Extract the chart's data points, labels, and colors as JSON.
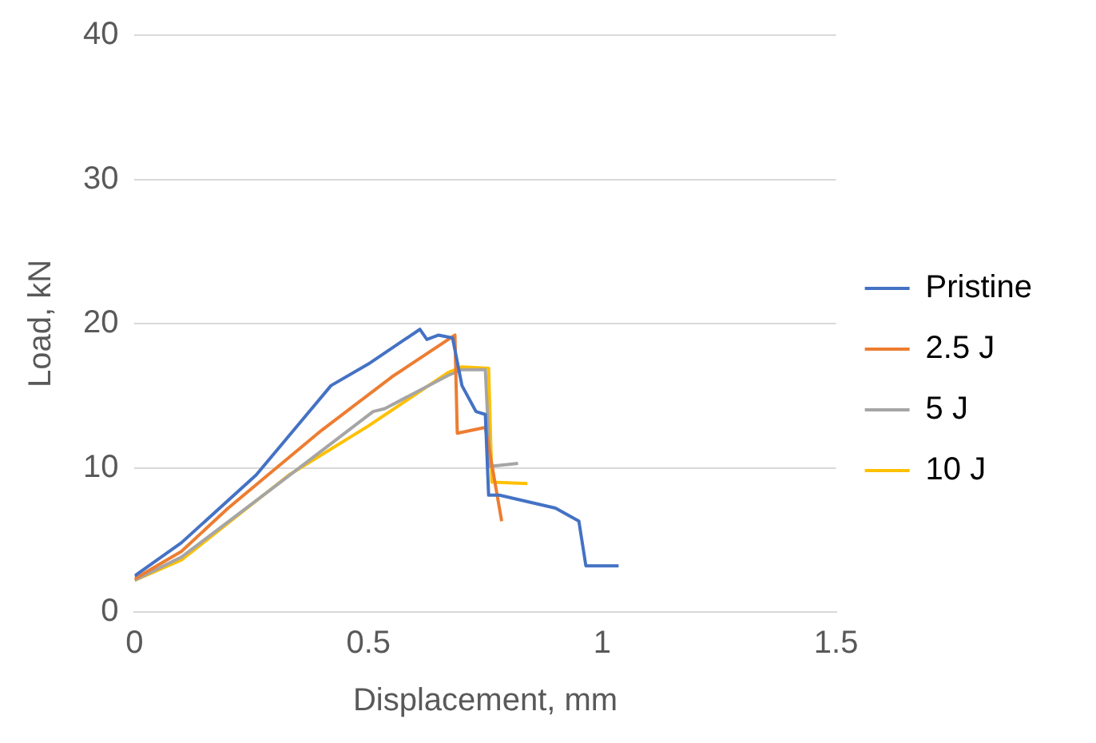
{
  "chart_data": {
    "type": "line",
    "xlabel": "Displacement, mm",
    "ylabel": "Load, kN",
    "xlim": [
      0,
      1.5
    ],
    "xticks": [
      0,
      0.5,
      1,
      1.5
    ],
    "ylim": [
      0,
      40
    ],
    "yticks": [
      0,
      10,
      20,
      30,
      40
    ],
    "grid": "y",
    "legend": "right",
    "marker": "none",
    "line_style": "solid",
    "series": [
      {
        "name": "Pristine",
        "color": "#4472c4",
        "x": [
          0,
          0.1,
          0.26,
          0.42,
          0.5,
          0.61,
          0.625,
          0.65,
          0.68,
          0.7,
          0.73,
          0.75,
          0.757,
          0.78,
          0.9,
          0.95,
          0.965,
          1.035
        ],
        "values": [
          2.5,
          4.8,
          9.5,
          15.7,
          17.2,
          19.6,
          18.9,
          19.2,
          19,
          15.7,
          13.9,
          13.7,
          8.1,
          8.1,
          7.2,
          6.3,
          3.2,
          3.2
        ]
      },
      {
        "name": "2.5 J",
        "color": "#ed7d31",
        "x": [
          0,
          0.1,
          0.2,
          0.4,
          0.55,
          0.685,
          0.69,
          0.75,
          0.785
        ],
        "values": [
          2.3,
          4.2,
          7.2,
          12.6,
          16.3,
          19.2,
          12.4,
          12.8,
          6.3
        ]
      },
      {
        "name": "5 J",
        "color": "#a5a5a5",
        "x": [
          0,
          0.1,
          0.3,
          0.51,
          0.535,
          0.67,
          0.7,
          0.75,
          0.76,
          0.82
        ],
        "values": [
          2.2,
          3.8,
          8.7,
          13.9,
          14.1,
          16.4,
          16.8,
          16.8,
          10.1,
          10.3
        ]
      },
      {
        "name": "10 J",
        "color": "#ffc000",
        "x": [
          0,
          0.1,
          0.33,
          0.5,
          0.67,
          0.7,
          0.757,
          0.764,
          0.84
        ],
        "values": [
          2.2,
          3.6,
          9.5,
          12.9,
          16.6,
          17,
          16.9,
          9,
          8.9
        ]
      }
    ]
  }
}
